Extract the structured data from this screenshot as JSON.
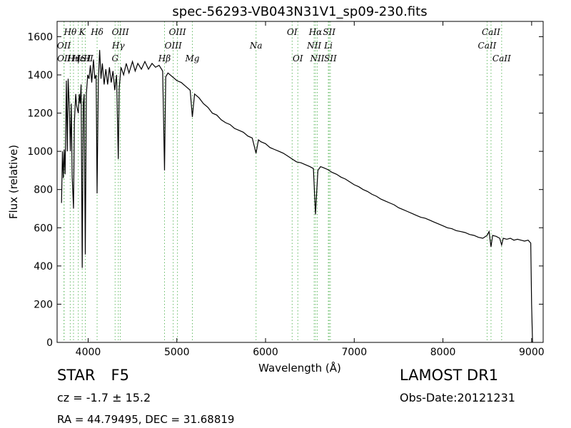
{
  "chart_data": {
    "type": "line",
    "title": "spec-56293-VB043N31V1_sp09-230.fits",
    "xlabel": "Wavelength (Å)",
    "ylabel": "Flux (relative)",
    "xlim": [
      3650,
      9130
    ],
    "ylim": [
      0,
      1680
    ],
    "xticks": [
      4000,
      5000,
      6000,
      7000,
      8000,
      9000
    ],
    "yticks": [
      0,
      200,
      400,
      600,
      800,
      1000,
      1200,
      1400,
      1600
    ],
    "grid": false,
    "series": [
      {
        "color": "#000000",
        "points": [
          [
            3700,
            730
          ],
          [
            3710,
            1000
          ],
          [
            3720,
            860
          ],
          [
            3730,
            1010
          ],
          [
            3740,
            880
          ],
          [
            3755,
            1370
          ],
          [
            3765,
            1000
          ],
          [
            3775,
            1380
          ],
          [
            3790,
            1200
          ],
          [
            3800,
            1000
          ],
          [
            3810,
            1250
          ],
          [
            3820,
            870
          ],
          [
            3835,
            700
          ],
          [
            3845,
            1150
          ],
          [
            3860,
            1300
          ],
          [
            3870,
            1240
          ],
          [
            3889,
            1200
          ],
          [
            3900,
            1300
          ],
          [
            3910,
            1250
          ],
          [
            3920,
            1350
          ],
          [
            3933,
            390
          ],
          [
            3945,
            1250
          ],
          [
            3955,
            1300
          ],
          [
            3968,
            460
          ],
          [
            3980,
            1300
          ],
          [
            3995,
            1400
          ],
          [
            4010,
            1380
          ],
          [
            4025,
            1450
          ],
          [
            4040,
            1360
          ],
          [
            4060,
            1480
          ],
          [
            4075,
            1380
          ],
          [
            4090,
            1400
          ],
          [
            4101,
            780
          ],
          [
            4115,
            1370
          ],
          [
            4130,
            1530
          ],
          [
            4145,
            1380
          ],
          [
            4160,
            1460
          ],
          [
            4180,
            1350
          ],
          [
            4200,
            1430
          ],
          [
            4220,
            1350
          ],
          [
            4240,
            1440
          ],
          [
            4260,
            1360
          ],
          [
            4280,
            1420
          ],
          [
            4300,
            1320
          ],
          [
            4320,
            1400
          ],
          [
            4340,
            960
          ],
          [
            4350,
            1330
          ],
          [
            4370,
            1440
          ],
          [
            4400,
            1400
          ],
          [
            4430,
            1460
          ],
          [
            4460,
            1410
          ],
          [
            4500,
            1470
          ],
          [
            4530,
            1420
          ],
          [
            4560,
            1460
          ],
          [
            4600,
            1430
          ],
          [
            4640,
            1470
          ],
          [
            4680,
            1430
          ],
          [
            4720,
            1460
          ],
          [
            4760,
            1440
          ],
          [
            4800,
            1450
          ],
          [
            4840,
            1420
          ],
          [
            4861,
            900
          ],
          [
            4875,
            1390
          ],
          [
            4900,
            1410
          ],
          [
            4950,
            1390
          ],
          [
            5000,
            1370
          ],
          [
            5050,
            1360
          ],
          [
            5100,
            1340
          ],
          [
            5150,
            1320
          ],
          [
            5175,
            1180
          ],
          [
            5200,
            1300
          ],
          [
            5250,
            1280
          ],
          [
            5300,
            1250
          ],
          [
            5350,
            1230
          ],
          [
            5400,
            1200
          ],
          [
            5450,
            1190
          ],
          [
            5500,
            1165
          ],
          [
            5550,
            1150
          ],
          [
            5600,
            1140
          ],
          [
            5650,
            1120
          ],
          [
            5700,
            1110
          ],
          [
            5750,
            1100
          ],
          [
            5800,
            1080
          ],
          [
            5850,
            1070
          ],
          [
            5893,
            990
          ],
          [
            5920,
            1060
          ],
          [
            5950,
            1050
          ],
          [
            6000,
            1040
          ],
          [
            6050,
            1020
          ],
          [
            6100,
            1010
          ],
          [
            6150,
            1000
          ],
          [
            6200,
            990
          ],
          [
            6250,
            975
          ],
          [
            6300,
            960
          ],
          [
            6350,
            945
          ],
          [
            6400,
            940
          ],
          [
            6450,
            930
          ],
          [
            6500,
            920
          ],
          [
            6540,
            910
          ],
          [
            6563,
            670
          ],
          [
            6590,
            900
          ],
          [
            6620,
            920
          ],
          [
            6650,
            915
          ],
          [
            6700,
            905
          ],
          [
            6750,
            890
          ],
          [
            6800,
            880
          ],
          [
            6850,
            865
          ],
          [
            6900,
            855
          ],
          [
            6950,
            840
          ],
          [
            7000,
            825
          ],
          [
            7050,
            815
          ],
          [
            7100,
            800
          ],
          [
            7150,
            790
          ],
          [
            7200,
            775
          ],
          [
            7250,
            765
          ],
          [
            7300,
            750
          ],
          [
            7350,
            740
          ],
          [
            7400,
            730
          ],
          [
            7450,
            720
          ],
          [
            7500,
            705
          ],
          [
            7550,
            695
          ],
          [
            7600,
            685
          ],
          [
            7650,
            675
          ],
          [
            7700,
            665
          ],
          [
            7750,
            655
          ],
          [
            7800,
            650
          ],
          [
            7850,
            640
          ],
          [
            7900,
            630
          ],
          [
            7950,
            620
          ],
          [
            8000,
            610
          ],
          [
            8050,
            600
          ],
          [
            8100,
            595
          ],
          [
            8150,
            585
          ],
          [
            8200,
            580
          ],
          [
            8250,
            575
          ],
          [
            8300,
            565
          ],
          [
            8350,
            560
          ],
          [
            8400,
            550
          ],
          [
            8450,
            545
          ],
          [
            8498,
            560
          ],
          [
            8520,
            580
          ],
          [
            8542,
            500
          ],
          [
            8560,
            560
          ],
          [
            8600,
            555
          ],
          [
            8640,
            545
          ],
          [
            8662,
            510
          ],
          [
            8680,
            545
          ],
          [
            8720,
            540
          ],
          [
            8760,
            545
          ],
          [
            8800,
            535
          ],
          [
            8840,
            540
          ],
          [
            8880,
            535
          ],
          [
            8920,
            530
          ],
          [
            8960,
            535
          ],
          [
            8990,
            520
          ],
          [
            9000,
            200
          ],
          [
            9010,
            0
          ]
        ]
      }
    ],
    "lines": [
      {
        "label": "Hθ",
        "x": 3798
      },
      {
        "label": "K",
        "x": 3933
      },
      {
        "label": "Hδ",
        "x": 4101
      },
      {
        "label": "OIII",
        "x": 4363
      },
      {
        "label": "OIII",
        "x": 5007
      },
      {
        "label": "OI",
        "x": 6300
      },
      {
        "label": "Hα",
        "x": 6563
      },
      {
        "label": "SII",
        "x": 6717
      },
      {
        "label": "CaII",
        "x": 8542
      },
      {
        "label": "OII",
        "x": 3727
      },
      {
        "label": "Hγ",
        "x": 4340
      },
      {
        "label": "OIII",
        "x": 4959
      },
      {
        "label": "Na",
        "x": 5893
      },
      {
        "label": "NII",
        "x": 6548
      },
      {
        "label": "Li",
        "x": 6708
      },
      {
        "label": "CaII",
        "x": 8498
      },
      {
        "label": "OII",
        "x": 3729
      },
      {
        "label": "Hη",
        "x": 3835
      },
      {
        "label": "Hε",
        "x": 3889
      },
      {
        "label": "ISII",
        "x": 3968
      },
      {
        "label": "H",
        "x": 3968
      },
      {
        "label": "G",
        "x": 4304
      },
      {
        "label": "Hβ",
        "x": 4861
      },
      {
        "label": "Mg",
        "x": 5175
      },
      {
        "label": "OI",
        "x": 6364
      },
      {
        "label": "NII",
        "x": 6583
      },
      {
        "label": "SII",
        "x": 6731
      },
      {
        "label": "CaII",
        "x": 8662
      }
    ],
    "label_rows": [
      [
        "Hθ",
        "K",
        "Hδ",
        "OIII",
        "OIII",
        "OI",
        "Hα",
        "SII",
        "CaII"
      ],
      [
        "OII",
        "Hγ",
        "OIII",
        "Na",
        "NII",
        "Li",
        "CaII"
      ],
      [
        "OII",
        "Hη",
        "Hε",
        "ISII",
        "H",
        "G",
        "Hβ",
        "Mg",
        "OI",
        "NII",
        "SII",
        "CaII"
      ]
    ],
    "label_row_x": [
      [
        3798,
        3933,
        4101,
        4363,
        5007,
        6300,
        6563,
        6717,
        8542
      ],
      [
        3727,
        4340,
        4959,
        5893,
        6548,
        6708,
        8498
      ],
      [
        3729,
        3835,
        3889,
        3968,
        3990,
        4304,
        4861,
        5175,
        6364,
        6583,
        6731,
        8662
      ]
    ]
  },
  "info": {
    "object_class": "STAR",
    "subclass": "F5",
    "survey": "LAMOST DR1",
    "redshift": "cz = -1.7 ± 15.2",
    "obs_date": "Obs-Date:20121231",
    "coords": "RA = 44.79495, DEC = 31.68819"
  }
}
